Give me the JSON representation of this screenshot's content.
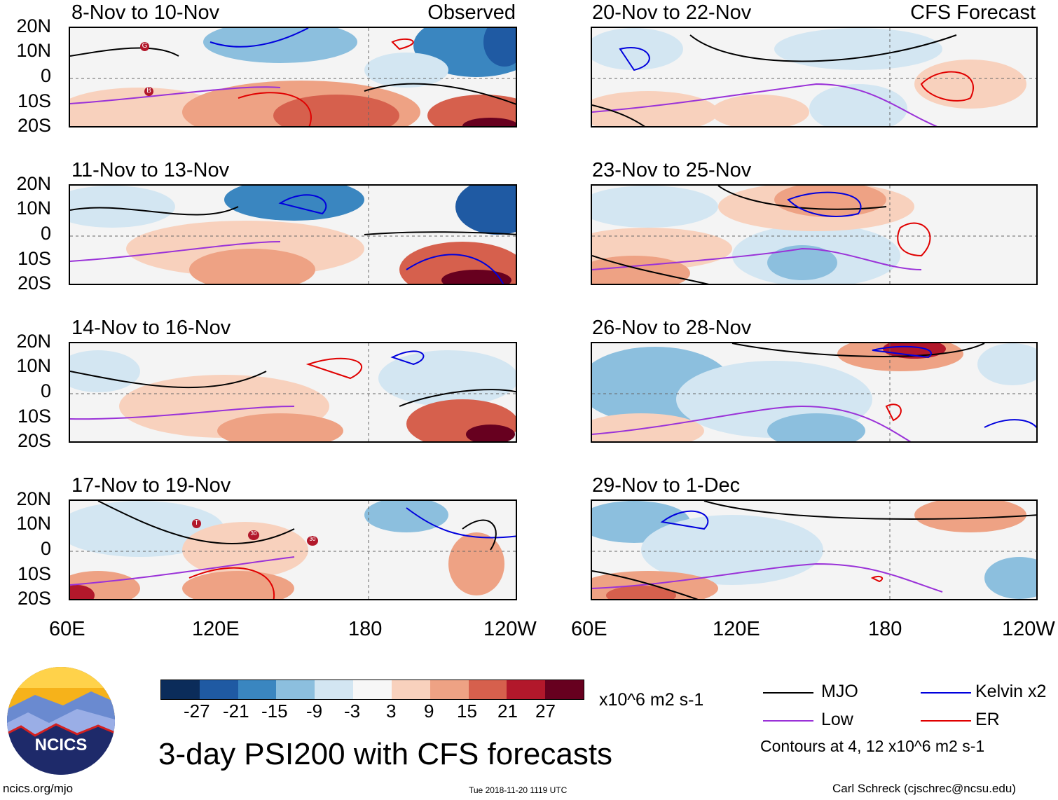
{
  "panels": {
    "p1": {
      "title": "8-Nov to 10-Nov",
      "tag": "Observed"
    },
    "p2": {
      "title": "11-Nov to 13-Nov"
    },
    "p3": {
      "title": "14-Nov to 16-Nov"
    },
    "p4": {
      "title": "17-Nov to 19-Nov"
    },
    "p5": {
      "title": "20-Nov to 22-Nov",
      "tag": "CFS Forecast"
    },
    "p6": {
      "title": "23-Nov to 25-Nov"
    },
    "p7": {
      "title": "26-Nov to 28-Nov"
    },
    "p8": {
      "title": "29-Nov to 1-Dec"
    }
  },
  "lat_labels": [
    "20N",
    "10N",
    "0",
    "10S",
    "20S"
  ],
  "lon_labels": [
    "60E",
    "120E",
    "180",
    "120W"
  ],
  "colorbar": {
    "colors": [
      "#0b2c5a",
      "#1f5aa3",
      "#3a86c0",
      "#8cbfde",
      "#d3e6f2",
      "#f7f7f7",
      "#f8d1bd",
      "#eea284",
      "#d6604d",
      "#b2182b",
      "#67001f"
    ],
    "ticks": [
      "-27",
      "-21",
      "-15",
      "-9",
      "-3",
      "3",
      "9",
      "15",
      "21",
      "27"
    ],
    "units": "x10^6 m2 s-1"
  },
  "title": "3-day PSI200 with CFS forecasts",
  "legend": {
    "mjo": {
      "label": "MJO",
      "color": "#000000"
    },
    "kelvin": {
      "label": "Kelvin x2",
      "color": "#0000dd"
    },
    "low": {
      "label": "Low",
      "color": "#9a32d8"
    },
    "er": {
      "label": "ER",
      "color": "#e00000"
    },
    "contours": "Contours at 4, 12 x10^6 m2 s-1"
  },
  "logo": {
    "text": "NCICS"
  },
  "footer": {
    "website": "ncics.org/mjo",
    "timestamp": "Tue 2018-11-20 1119 UTC",
    "author": "Carl Schreck (cjschrec@ncsu.edu)"
  },
  "storm_markers": [
    {
      "panel": "p1",
      "label": "G"
    },
    {
      "panel": "p1",
      "label": "B"
    },
    {
      "panel": "p4",
      "label": "T"
    },
    {
      "panel": "p4",
      "label": "30"
    },
    {
      "panel": "p4",
      "label": "30"
    }
  ]
}
